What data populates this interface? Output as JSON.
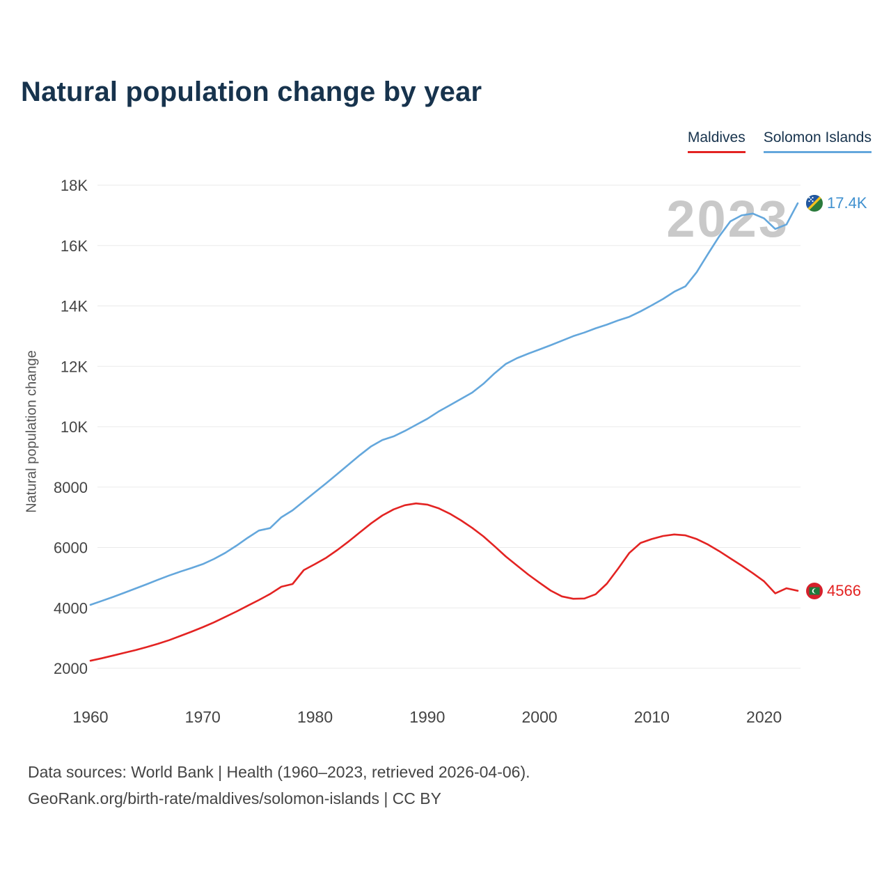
{
  "title": "Natural population change by year",
  "watermark": "2023",
  "y_axis_title": "Natural population change",
  "legend": [
    {
      "label": "Maldives",
      "color": "#e32322"
    },
    {
      "label": "Solomon Islands",
      "color": "#64a7dc"
    }
  ],
  "end_labels": [
    {
      "series": "Solomon Islands",
      "text": "17.4K",
      "color": "#3f90cf",
      "flag": "solomon-islands-flag"
    },
    {
      "series": "Maldives",
      "text": "4566",
      "color": "#e32322",
      "flag": "maldives-flag"
    }
  ],
  "footer": {
    "line1": "Data sources: World Bank | Health (1960–2023, retrieved 2026-04-06).",
    "line2": "GeoRank.org/birth-rate/maldives/solomon-islands | CC BY"
  },
  "chart_data": {
    "type": "line",
    "title": "Natural population change by year",
    "xlabel": "",
    "ylabel": "Natural population change",
    "xlim": [
      1960,
      2023
    ],
    "ylim": [
      2000,
      18000
    ],
    "grid": "horizontal",
    "legend_position": "top-right",
    "xticks": [
      1960,
      1970,
      1980,
      1990,
      2000,
      2010,
      2020
    ],
    "yticks": [
      {
        "value": 2000,
        "label": "2000"
      },
      {
        "value": 4000,
        "label": "4000"
      },
      {
        "value": 6000,
        "label": "6000"
      },
      {
        "value": 8000,
        "label": "8000"
      },
      {
        "value": 10000,
        "label": "10K"
      },
      {
        "value": 12000,
        "label": "12K"
      },
      {
        "value": 14000,
        "label": "14K"
      },
      {
        "value": 16000,
        "label": "16K"
      },
      {
        "value": 18000,
        "label": "18K"
      }
    ],
    "x": [
      1960,
      1961,
      1962,
      1963,
      1964,
      1965,
      1966,
      1967,
      1968,
      1969,
      1970,
      1971,
      1972,
      1973,
      1974,
      1975,
      1976,
      1977,
      1978,
      1979,
      1980,
      1981,
      1982,
      1983,
      1984,
      1985,
      1986,
      1987,
      1988,
      1989,
      1990,
      1991,
      1992,
      1993,
      1994,
      1995,
      1996,
      1997,
      1998,
      1999,
      2000,
      2001,
      2002,
      2003,
      2004,
      2005,
      2006,
      2007,
      2008,
      2009,
      2010,
      2011,
      2012,
      2013,
      2014,
      2015,
      2016,
      2017,
      2018,
      2019,
      2020,
      2021,
      2022,
      2023
    ],
    "series": [
      {
        "name": "Maldives",
        "color": "#e32322",
        "last_value_label": "4566",
        "values": [
          2250,
          2330,
          2420,
          2510,
          2600,
          2700,
          2810,
          2930,
          3070,
          3210,
          3360,
          3520,
          3700,
          3880,
          4070,
          4260,
          4460,
          4700,
          4790,
          5250,
          5450,
          5660,
          5920,
          6200,
          6500,
          6800,
          7060,
          7260,
          7400,
          7460,
          7420,
          7300,
          7120,
          6900,
          6650,
          6370,
          6040,
          5700,
          5400,
          5100,
          4830,
          4570,
          4380,
          4300,
          4310,
          4450,
          4800,
          5300,
          5820,
          6150,
          6280,
          6380,
          6430,
          6400,
          6280,
          6100,
          5880,
          5640,
          5400,
          5150,
          4880,
          4480,
          4650,
          4566
        ]
      },
      {
        "name": "Solomon Islands",
        "color": "#64a7dc",
        "last_value_label": "17.4K",
        "values": [
          4100,
          4230,
          4360,
          4500,
          4640,
          4780,
          4930,
          5070,
          5200,
          5320,
          5450,
          5620,
          5820,
          6060,
          6320,
          6560,
          6640,
          7000,
          7230,
          7530,
          7830,
          8130,
          8440,
          8750,
          9060,
          9350,
          9560,
          9680,
          9860,
          10060,
          10260,
          10500,
          10710,
          10920,
          11130,
          11420,
          11770,
          12080,
          12270,
          12420,
          12560,
          12700,
          12850,
          13000,
          13120,
          13260,
          13380,
          13520,
          13640,
          13820,
          14020,
          14230,
          14470,
          14650,
          15120,
          15720,
          16300,
          16800,
          17000,
          17060,
          16900,
          16550,
          16700,
          17400
        ]
      }
    ]
  }
}
